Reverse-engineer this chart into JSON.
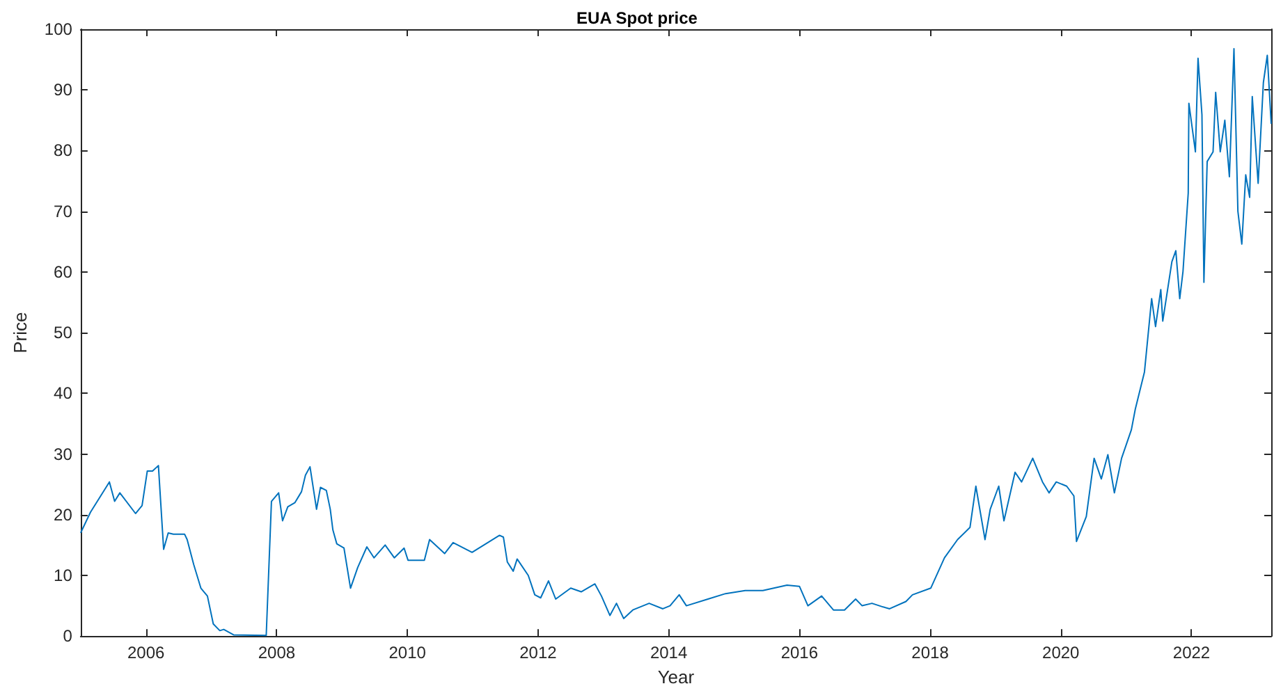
{
  "chart_data": {
    "type": "line",
    "title": "EUA Spot price",
    "xlabel": "Year",
    "ylabel": "Price",
    "xlim": [
      2005,
      2023.22
    ],
    "xticks": [
      2006,
      2008,
      2010,
      2012,
      2014,
      2016,
      2018,
      2020,
      2022
    ],
    "ylim": [
      0,
      100
    ],
    "yticks": [
      0,
      10,
      20,
      30,
      40,
      50,
      60,
      70,
      80,
      90,
      100
    ],
    "marker": "none",
    "line_style": "solid",
    "series": [
      {
        "color": "#0072bd",
        "x": [
          2005.0,
          2005.15,
          2005.44,
          2005.52,
          2005.6,
          2005.84,
          2005.94,
          2006.02,
          2006.1,
          2006.19,
          2006.27,
          2006.34,
          2006.42,
          2006.59,
          2006.63,
          2006.73,
          2006.84,
          2006.94,
          2007.03,
          2007.13,
          2007.19,
          2007.34,
          2007.84,
          2007.92,
          2008.03,
          2008.09,
          2008.17,
          2008.28,
          2008.38,
          2008.44,
          2008.51,
          2008.61,
          2008.67,
          2008.76,
          2008.82,
          2008.86,
          2008.92,
          2009.03,
          2009.13,
          2009.24,
          2009.38,
          2009.49,
          2009.66,
          2009.8,
          2009.95,
          2010.01,
          2010.26,
          2010.34,
          2010.57,
          2010.7,
          2010.99,
          2011.2,
          2011.41,
          2011.47,
          2011.53,
          2011.62,
          2011.68,
          2011.85,
          2011.95,
          2012.04,
          2012.16,
          2012.27,
          2012.5,
          2012.66,
          2012.87,
          2012.97,
          2013.1,
          2013.2,
          2013.31,
          2013.45,
          2013.7,
          2013.91,
          2014.02,
          2014.16,
          2014.27,
          2014.6,
          2014.87,
          2015.17,
          2015.44,
          2015.81,
          2016.0,
          2016.13,
          2016.34,
          2016.52,
          2016.69,
          2016.86,
          2016.96,
          2017.11,
          2017.28,
          2017.38,
          2017.63,
          2017.73,
          2018.01,
          2018.22,
          2018.42,
          2018.61,
          2018.7,
          2018.84,
          2018.92,
          2019.05,
          2019.13,
          2019.3,
          2019.4,
          2019.57,
          2019.72,
          2019.82,
          2019.93,
          2020.09,
          2020.2,
          2020.24,
          2020.39,
          2020.51,
          2020.62,
          2020.72,
          2020.82,
          2020.93,
          2021.08,
          2021.14,
          2021.28,
          2021.39,
          2021.45,
          2021.53,
          2021.56,
          2021.7,
          2021.76,
          2021.82,
          2021.87,
          2021.95,
          2021.96,
          2022.06,
          2022.1,
          2022.16,
          2022.19,
          2022.24,
          2022.33,
          2022.37,
          2022.44,
          2022.51,
          2022.58,
          2022.65,
          2022.71,
          2022.77,
          2022.83,
          2022.89,
          2022.93,
          2023.02,
          2023.1,
          2023.16,
          2023.22
        ],
        "values": [
          17,
          20.4,
          25.4,
          22.2,
          23.6,
          20.2,
          21.5,
          27.2,
          27.2,
          28.1,
          14.3,
          17,
          16.8,
          16.8,
          15.9,
          11.8,
          7.9,
          6.6,
          2,
          0.9,
          1.1,
          0.2,
          0.1,
          22.2,
          23.6,
          19,
          21.3,
          22,
          23.8,
          26.5,
          27.9,
          20.9,
          24.5,
          24,
          20.9,
          17.5,
          15.2,
          14.5,
          7.9,
          11.3,
          14.7,
          12.9,
          15,
          12.9,
          14.5,
          12.5,
          12.5,
          15.9,
          13.6,
          15.4,
          13.8,
          15.2,
          16.6,
          16.3,
          12.2,
          10.7,
          12.7,
          10,
          6.8,
          6.3,
          9.1,
          6.1,
          7.9,
          7.3,
          8.6,
          6.6,
          3.4,
          5.4,
          2.9,
          4.3,
          5.4,
          4.5,
          5,
          6.8,
          5,
          6.1,
          7,
          7.5,
          7.5,
          8.4,
          8.2,
          5,
          6.6,
          4.3,
          4.3,
          6.1,
          5,
          5.4,
          4.8,
          4.5,
          5.7,
          6.8,
          7.9,
          12.9,
          15.9,
          17.9,
          24.7,
          15.9,
          20.9,
          24.7,
          19,
          27,
          25.4,
          29.3,
          25.4,
          23.6,
          25.4,
          24.7,
          23.1,
          15.6,
          19.7,
          29.3,
          25.9,
          29.9,
          23.6,
          29.3,
          34,
          37.4,
          43.5,
          55.6,
          51,
          57.1,
          51.9,
          61.7,
          63.5,
          55.6,
          60.1,
          73,
          87.8,
          79.8,
          95.2,
          85.9,
          58.3,
          78.2,
          79.8,
          89.6,
          79.8,
          85,
          75.7,
          96.8,
          70,
          64.6,
          76,
          72.3,
          88.9,
          74.6,
          91.2,
          95.7,
          84.4
        ]
      }
    ]
  }
}
